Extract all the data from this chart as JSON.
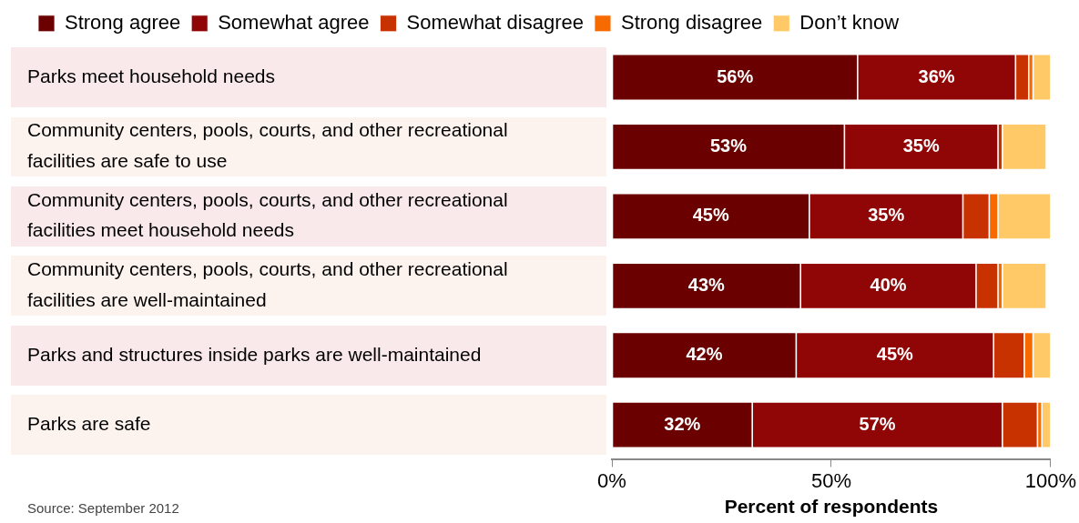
{
  "chart_data": {
    "type": "bar",
    "orientation": "horizontal",
    "stacked": true,
    "categories": [
      "Parks meet household needs",
      "Community centers, pools, courts, and other recreational facilities are safe to use",
      "Community centers, pools, courts, and other recreational facilities meet household needs",
      "Community centers, pools, courts, and other recreational facilities are well-maintained",
      "Parks and structures inside parks are well-maintained",
      "Parks are safe"
    ],
    "series": [
      {
        "name": "Strong agree",
        "color": "#6b0000",
        "values": [
          56,
          53,
          45,
          43,
          42,
          32
        ],
        "value_labels": [
          "56%",
          "53%",
          "45%",
          "43%",
          "42%",
          "32%"
        ]
      },
      {
        "name": "Somewhat agree",
        "color": "#900606",
        "values": [
          36,
          35,
          35,
          40,
          45,
          57
        ],
        "value_labels": [
          "36%",
          "35%",
          "35%",
          "40%",
          "45%",
          "57%"
        ]
      },
      {
        "name": "Somewhat disagree",
        "color": "#c83200",
        "values": [
          3,
          1,
          6,
          5,
          7,
          8
        ]
      },
      {
        "name": "Strong disagree",
        "color": "#f76a00",
        "values": [
          1,
          0,
          2,
          1,
          2,
          1
        ]
      },
      {
        "name": "Don’t know",
        "color": "#fec966",
        "values": [
          4,
          10,
          12,
          10,
          4,
          2
        ]
      }
    ],
    "xlabel": "Percent of respondents",
    "xlim": [
      0,
      100
    ],
    "xticks": [
      {
        "value": 0,
        "label": "0%"
      },
      {
        "value": 50,
        "label": "50%"
      },
      {
        "value": 100,
        "label": "100%"
      }
    ],
    "grid": false,
    "legend": "top",
    "annotations": [
      "Source: September 2012"
    ]
  }
}
